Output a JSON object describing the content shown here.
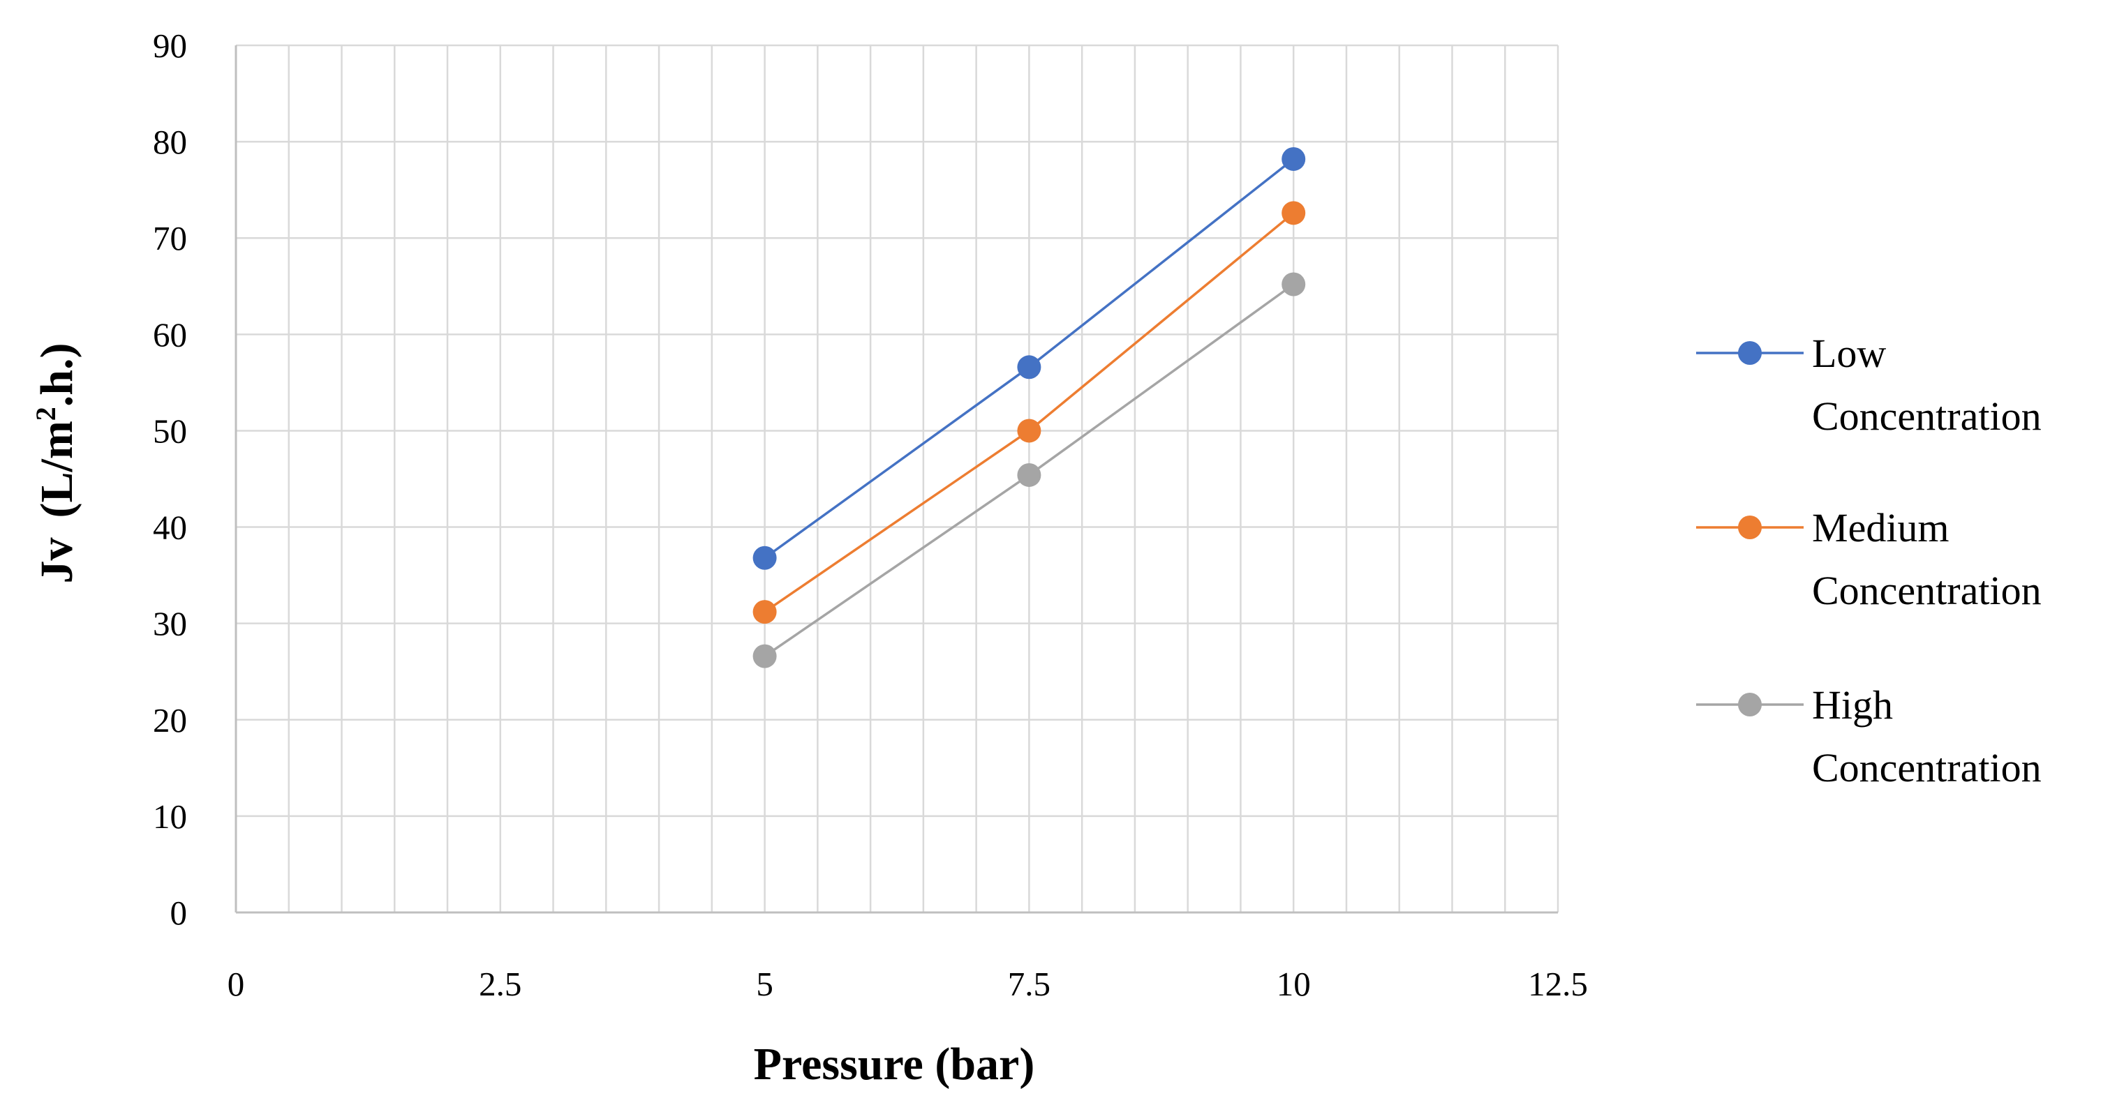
{
  "chart_data": {
    "type": "line",
    "title": "",
    "xlabel": "Pressure (bar)",
    "ylabel_main": "Jv",
    "ylabel_unit": "(L/m",
    "ylabel_sup": "2",
    "ylabel_tail": ".h.)",
    "xlim": [
      0,
      12.5
    ],
    "ylim": [
      0,
      90
    ],
    "x_ticks": [
      0,
      2.5,
      5,
      7.5,
      10,
      12.5
    ],
    "x_tick_labels": [
      "0",
      "2.5",
      "5",
      "7.5",
      "10",
      "12.5"
    ],
    "y_ticks": [
      0,
      10,
      20,
      30,
      40,
      50,
      60,
      70,
      80,
      90
    ],
    "y_tick_labels": [
      "0",
      "10",
      "20",
      "30",
      "40",
      "50",
      "60",
      "70",
      "80",
      "90"
    ],
    "x_minor_step": 0.5,
    "grid": true,
    "legend_position": "right",
    "series": [
      {
        "name": "Low Concentration",
        "legend_lines": [
          "Low",
          "Concentration"
        ],
        "color": "#4472C4",
        "x": [
          5,
          7.5,
          10
        ],
        "values": [
          36.8,
          56.6,
          78.2
        ]
      },
      {
        "name": "Medium Concentration",
        "legend_lines": [
          "Medium",
          "Concentration"
        ],
        "color": "#ED7D31",
        "x": [
          5,
          7.5,
          10
        ],
        "values": [
          31.2,
          50.0,
          72.6
        ]
      },
      {
        "name": "High Concentration",
        "legend_lines": [
          "High",
          "Concentration"
        ],
        "color": "#A5A5A5",
        "x": [
          5,
          7.5,
          10
        ],
        "values": [
          26.6,
          45.4,
          65.2
        ]
      }
    ]
  },
  "colors": {
    "grid": "#D9D9D9",
    "axis": "#BFBFBF",
    "text": "#000000",
    "background": "#FFFFFF"
  }
}
